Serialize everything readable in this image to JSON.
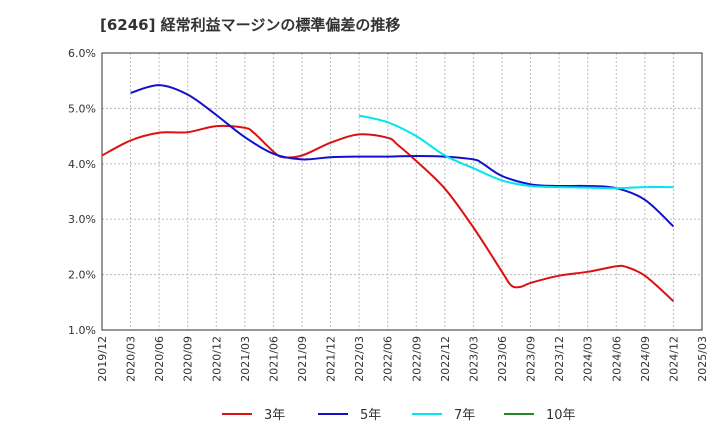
{
  "chart_data": {
    "type": "line",
    "title": "[6246]  経常利益マージンの標準偏差の推移",
    "xlabel": "",
    "ylabel": "",
    "ylim": [
      1.0,
      6.0
    ],
    "grid": true,
    "legend_position": "bottom",
    "y_ticks": [
      "1.0%",
      "2.0%",
      "3.0%",
      "4.0%",
      "5.0%",
      "6.0%"
    ],
    "x_ticks": [
      "2019/12",
      "2020/03",
      "2020/06",
      "2020/09",
      "2020/12",
      "2021/03",
      "2021/06",
      "2021/09",
      "2021/12",
      "2022/03",
      "2022/06",
      "2022/09",
      "2022/12",
      "2023/03",
      "2023/06",
      "2023/09",
      "2023/12",
      "2024/03",
      "2024/06",
      "2024/09",
      "2024/12",
      "2025/03"
    ],
    "series": [
      {
        "name": "3年",
        "color": "#dd1111",
        "points": [
          [
            "2019/12",
            4.15
          ],
          [
            "2020/03",
            4.42
          ],
          [
            "2020/06",
            4.56
          ],
          [
            "2020/09",
            4.57
          ],
          [
            "2020/12",
            4.68
          ],
          [
            "2021/03",
            4.65
          ],
          [
            "2021/04",
            4.55
          ],
          [
            "2021/06",
            4.22
          ],
          [
            "2021/07",
            4.12
          ],
          [
            "2021/09",
            4.15
          ],
          [
            "2021/12",
            4.38
          ],
          [
            "2022/03",
            4.53
          ],
          [
            "2022/06",
            4.47
          ],
          [
            "2022/07",
            4.35
          ],
          [
            "2022/09",
            4.05
          ],
          [
            "2022/12",
            3.55
          ],
          [
            "2023/03",
            2.85
          ],
          [
            "2023/06",
            2.05
          ],
          [
            "2023/07",
            1.8
          ],
          [
            "2023/08",
            1.78
          ],
          [
            "2023/09",
            1.85
          ],
          [
            "2023/12",
            1.98
          ],
          [
            "2024/03",
            2.05
          ],
          [
            "2024/06",
            2.15
          ],
          [
            "2024/07",
            2.14
          ],
          [
            "2024/09",
            1.98
          ],
          [
            "2024/12",
            1.52
          ]
        ]
      },
      {
        "name": "5年",
        "color": "#1111cc",
        "points": [
          [
            "2020/03",
            5.28
          ],
          [
            "2020/06",
            5.42
          ],
          [
            "2020/09",
            5.25
          ],
          [
            "2020/12",
            4.88
          ],
          [
            "2021/03",
            4.48
          ],
          [
            "2021/06",
            4.18
          ],
          [
            "2021/09",
            4.08
          ],
          [
            "2021/12",
            4.12
          ],
          [
            "2022/03",
            4.13
          ],
          [
            "2022/06",
            4.13
          ],
          [
            "2022/09",
            4.14
          ],
          [
            "2022/12",
            4.13
          ],
          [
            "2023/03",
            4.08
          ],
          [
            "2023/04",
            4.0
          ],
          [
            "2023/06",
            3.78
          ],
          [
            "2023/09",
            3.63
          ],
          [
            "2023/12",
            3.6
          ],
          [
            "2024/03",
            3.6
          ],
          [
            "2024/06",
            3.56
          ],
          [
            "2024/09",
            3.35
          ],
          [
            "2024/12",
            2.87
          ]
        ]
      },
      {
        "name": "7年",
        "color": "#00e5ee",
        "points": [
          [
            "2022/03",
            4.87
          ],
          [
            "2022/06",
            4.75
          ],
          [
            "2022/09",
            4.5
          ],
          [
            "2022/12",
            4.15
          ],
          [
            "2023/03",
            3.92
          ],
          [
            "2023/06",
            3.7
          ],
          [
            "2023/09",
            3.6
          ],
          [
            "2023/12",
            3.58
          ],
          [
            "2024/03",
            3.57
          ],
          [
            "2024/06",
            3.56
          ],
          [
            "2024/09",
            3.58
          ],
          [
            "2024/12",
            3.58
          ]
        ]
      },
      {
        "name": "10年",
        "color": "#228822",
        "points": []
      }
    ]
  }
}
